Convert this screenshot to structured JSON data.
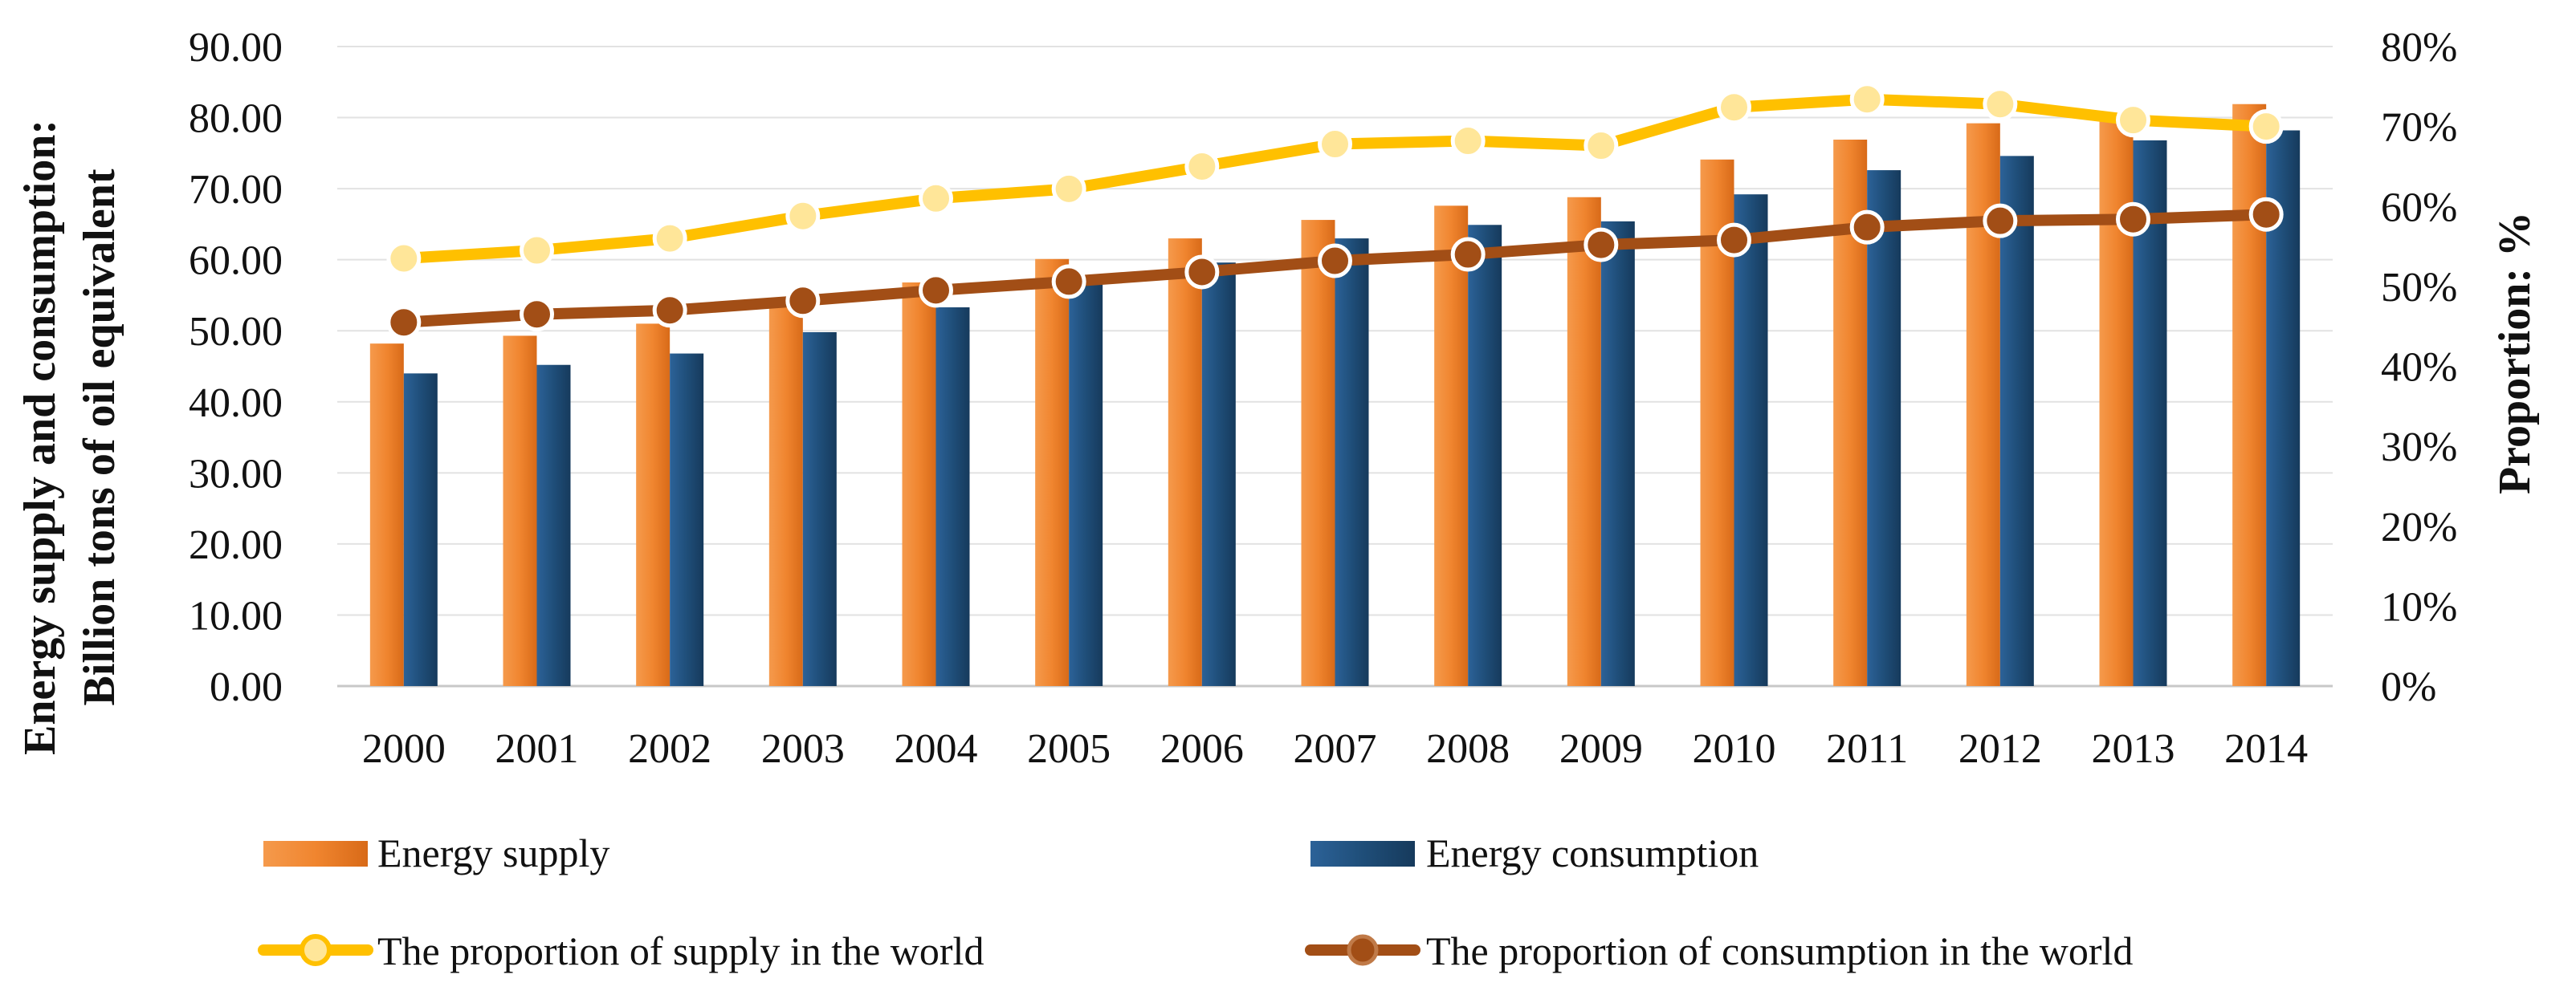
{
  "chart_data": {
    "type": "bar",
    "categories": [
      "2000",
      "2001",
      "2002",
      "2003",
      "2004",
      "2005",
      "2006",
      "2007",
      "2008",
      "2009",
      "2010",
      "2011",
      "2012",
      "2013",
      "2014"
    ],
    "series": [
      {
        "name": "Energy supply",
        "kind": "bar",
        "axis": "left",
        "color": "#f0852f",
        "values": [
          48.2,
          49.3,
          51.0,
          53.8,
          56.8,
          60.1,
          63.0,
          65.6,
          67.6,
          68.8,
          74.1,
          76.9,
          79.2,
          80.4,
          81.9
        ]
      },
      {
        "name": "Energy consumption",
        "kind": "bar",
        "axis": "left",
        "color": "#1f4e79",
        "values": [
          44.0,
          45.2,
          46.8,
          49.8,
          53.3,
          56.5,
          59.6,
          63.0,
          64.9,
          65.4,
          69.2,
          72.6,
          74.6,
          76.8,
          78.2
        ]
      },
      {
        "name": "The proportion of supply in the world",
        "kind": "line",
        "axis": "right",
        "color": "#ffc000",
        "marker_fill": "#ffe699",
        "values": [
          53.5,
          54.5,
          56.0,
          58.8,
          61.0,
          62.2,
          65.0,
          67.8,
          68.2,
          67.6,
          72.4,
          73.4,
          72.8,
          70.8,
          70.0
        ]
      },
      {
        "name": "The proportion of consumption in the world",
        "kind": "line",
        "axis": "right",
        "color": "#a24e16",
        "marker_fill": "#a24e16",
        "values": [
          45.5,
          46.5,
          47.0,
          48.2,
          49.5,
          50.6,
          51.8,
          53.2,
          54.0,
          55.2,
          55.8,
          57.4,
          58.2,
          58.4,
          59.0
        ]
      }
    ],
    "y_left": {
      "min": 0,
      "max": 90,
      "step": 10,
      "tick_labels": [
        "0.00",
        "10.00",
        "20.00",
        "30.00",
        "40.00",
        "50.00",
        "60.00",
        "70.00",
        "80.00",
        "90.00"
      ],
      "label_line1": "Energy supply and consumption:",
      "label_line2": "Billion tons of oil equivalent"
    },
    "y_right": {
      "min": 0,
      "max": 80,
      "step": 10,
      "tick_labels": [
        "0%",
        "10%",
        "20%",
        "30%",
        "40%",
        "50%",
        "60%",
        "70%",
        "80%"
      ],
      "label": "Proportion:  %"
    },
    "grid": true,
    "legend_position": "bottom"
  }
}
